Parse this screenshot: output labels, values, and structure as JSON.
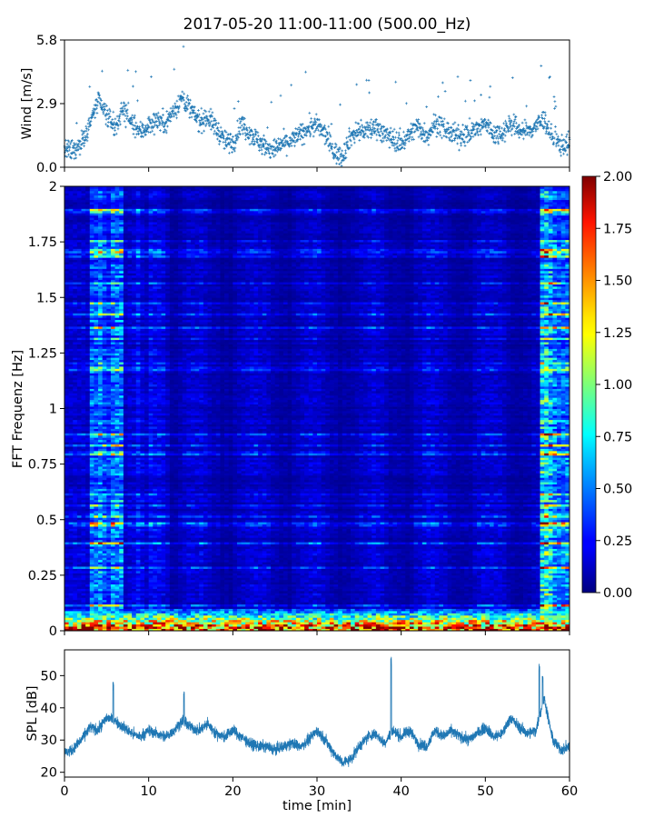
{
  "title": "2017-05-20 11:00-11:00 (500.00_Hz)",
  "colors": {
    "series": "#1f77b4",
    "axis": "#000000"
  },
  "chart_data": [
    {
      "type": "scatter",
      "ylabel": "Wind [m/s]",
      "xlim": [
        0,
        60
      ],
      "ylim": [
        0.0,
        5.8
      ],
      "yticks": [
        "0.0",
        "2.9",
        "5.8"
      ],
      "marker": "+",
      "sample_count": 1800,
      "trend": [
        [
          0,
          0.8
        ],
        [
          1,
          0.7
        ],
        [
          2,
          1.1
        ],
        [
          3,
          2.0
        ],
        [
          4,
          3.0
        ],
        [
          5,
          2.4
        ],
        [
          6,
          1.8
        ],
        [
          7,
          2.7
        ],
        [
          8,
          2.0
        ],
        [
          9,
          1.6
        ],
        [
          10,
          1.9
        ],
        [
          11,
          2.2
        ],
        [
          12,
          2.0
        ],
        [
          13,
          2.6
        ],
        [
          14,
          3.2
        ],
        [
          15,
          2.6
        ],
        [
          16,
          2.1
        ],
        [
          17,
          2.3
        ],
        [
          18,
          1.8
        ],
        [
          19,
          1.2
        ],
        [
          20,
          1.1
        ],
        [
          21,
          2.0
        ],
        [
          22,
          1.6
        ],
        [
          23,
          1.2
        ],
        [
          24,
          0.9
        ],
        [
          25,
          0.8
        ],
        [
          26,
          1.1
        ],
        [
          27,
          1.2
        ],
        [
          28,
          1.5
        ],
        [
          29,
          1.8
        ],
        [
          30,
          1.9
        ],
        [
          31,
          1.5
        ],
        [
          32,
          0.7
        ],
        [
          33,
          0.5
        ],
        [
          34,
          1.4
        ],
        [
          35,
          1.7
        ],
        [
          36,
          1.6
        ],
        [
          37,
          1.9
        ],
        [
          38,
          1.5
        ],
        [
          39,
          1.3
        ],
        [
          40,
          1.1
        ],
        [
          41,
          1.5
        ],
        [
          42,
          1.9
        ],
        [
          43,
          1.4
        ],
        [
          44,
          2.0
        ],
        [
          45,
          1.8
        ],
        [
          46,
          1.5
        ],
        [
          47,
          1.4
        ],
        [
          48,
          1.6
        ],
        [
          49,
          1.7
        ],
        [
          50,
          2.0
        ],
        [
          51,
          1.5
        ],
        [
          52,
          1.6
        ],
        [
          53,
          2.0
        ],
        [
          54,
          1.7
        ],
        [
          55,
          1.6
        ],
        [
          56,
          1.9
        ],
        [
          57,
          2.2
        ],
        [
          58,
          1.3
        ],
        [
          59,
          1.0
        ],
        [
          60,
          1.1
        ]
      ]
    },
    {
      "type": "heatmap",
      "ylabel": "FFT Frequenz [Hz]",
      "xlim": [
        0,
        60
      ],
      "ylim": [
        0,
        2
      ],
      "yticks": [
        "0",
        "0.25",
        "0.5",
        "0.75",
        "1",
        "1.25",
        "1.5",
        "1.75",
        "2"
      ],
      "colormap": "jet",
      "colorbar": {
        "range": [
          0.0,
          2.0
        ],
        "ticks": [
          "0.00",
          "0.25",
          "0.50",
          "0.75",
          "1.00",
          "1.25",
          "1.50",
          "1.75",
          "2.00"
        ]
      },
      "time_bins": 120,
      "freq_bins": 200,
      "bright_segments": [
        {
          "x": [
            3,
            7
          ],
          "level": 0.5
        },
        {
          "x": [
            8,
            12.5
          ],
          "level": 0.25
        },
        {
          "x": [
            56.5,
            60
          ],
          "level": 0.75
        }
      ],
      "low_freq_band": {
        "y": [
          0,
          0.1
        ],
        "level": 1.2
      }
    },
    {
      "type": "line",
      "ylabel": "SPL [dB]",
      "xlabel": "time [min]",
      "xlim": [
        0,
        60
      ],
      "ylim": [
        18.5,
        58
      ],
      "xticks": [
        "0",
        "10",
        "20",
        "30",
        "40",
        "50",
        "60"
      ],
      "yticks": [
        "20",
        "30",
        "40",
        "50"
      ],
      "sample_count": 3600,
      "trend": [
        [
          0,
          26
        ],
        [
          1,
          27
        ],
        [
          2,
          30
        ],
        [
          3,
          34
        ],
        [
          4,
          33
        ],
        [
          5,
          37
        ],
        [
          6,
          36
        ],
        [
          7,
          34
        ],
        [
          8,
          32
        ],
        [
          9,
          31
        ],
        [
          10,
          33
        ],
        [
          11,
          32
        ],
        [
          12,
          31
        ],
        [
          13,
          33
        ],
        [
          14,
          36
        ],
        [
          15,
          34
        ],
        [
          16,
          33
        ],
        [
          17,
          35
        ],
        [
          18,
          32
        ],
        [
          19,
          31
        ],
        [
          20,
          33
        ],
        [
          21,
          31
        ],
        [
          22,
          29
        ],
        [
          23,
          28
        ],
        [
          24,
          28
        ],
        [
          25,
          27
        ],
        [
          26,
          28
        ],
        [
          27,
          29
        ],
        [
          28,
          28
        ],
        [
          29,
          30
        ],
        [
          30,
          33
        ],
        [
          31,
          30
        ],
        [
          32,
          26
        ],
        [
          33,
          23
        ],
        [
          34,
          24
        ],
        [
          35,
          28
        ],
        [
          36,
          31
        ],
        [
          37,
          32
        ],
        [
          38,
          29
        ],
        [
          39,
          33
        ],
        [
          40,
          31
        ],
        [
          41,
          33
        ],
        [
          42,
          29
        ],
        [
          43,
          28
        ],
        [
          44,
          33
        ],
        [
          45,
          31
        ],
        [
          46,
          33
        ],
        [
          47,
          31
        ],
        [
          48,
          30
        ],
        [
          49,
          32
        ],
        [
          50,
          34
        ],
        [
          51,
          31
        ],
        [
          52,
          32
        ],
        [
          53,
          37
        ],
        [
          54,
          34
        ],
        [
          55,
          32
        ],
        [
          56,
          33
        ],
        [
          57,
          43
        ],
        [
          58,
          30
        ],
        [
          59,
          27
        ],
        [
          60,
          28
        ]
      ],
      "spikes": [
        {
          "x": 5.8,
          "y": 48
        },
        {
          "x": 14.2,
          "y": 45
        },
        {
          "x": 38.8,
          "y": 56
        },
        {
          "x": 56.4,
          "y": 54
        },
        {
          "x": 56.8,
          "y": 50
        }
      ]
    }
  ]
}
